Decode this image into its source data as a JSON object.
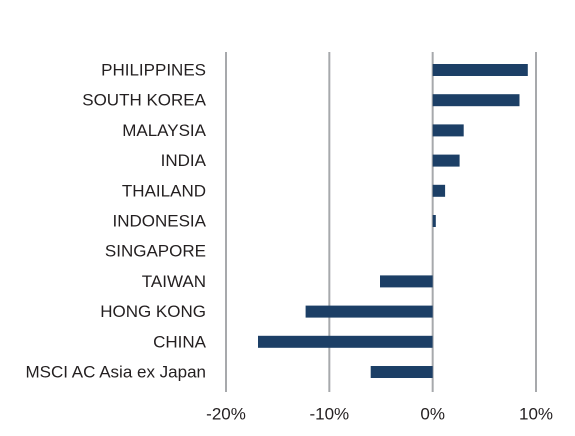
{
  "chart_data": {
    "type": "bar",
    "orientation": "horizontal",
    "title": "",
    "xlabel": "",
    "ylabel": "",
    "categories": [
      "PHILIPPINES",
      "SOUTH KOREA",
      "MALAYSIA",
      "INDIA",
      "THAILAND",
      "INDONESIA",
      "SINGAPORE",
      "TAIWAN",
      "HONG KONG",
      "CHINA",
      "MSCI AC Asia ex Japan"
    ],
    "values": [
      9.2,
      8.4,
      3.0,
      2.6,
      1.2,
      0.3,
      0.0,
      -5.1,
      -12.3,
      -16.9,
      -6.0
    ],
    "xlim": [
      -20,
      10
    ],
    "xticks": [
      -20,
      -10,
      0,
      10
    ],
    "xtick_labels": [
      "-20%",
      "-10%",
      "0%",
      "10%"
    ],
    "grid": "vertical",
    "legend": "none",
    "bar_color": "#1c3f66",
    "grid_color": "#a7a9ac",
    "text_color": "#231f20"
  }
}
